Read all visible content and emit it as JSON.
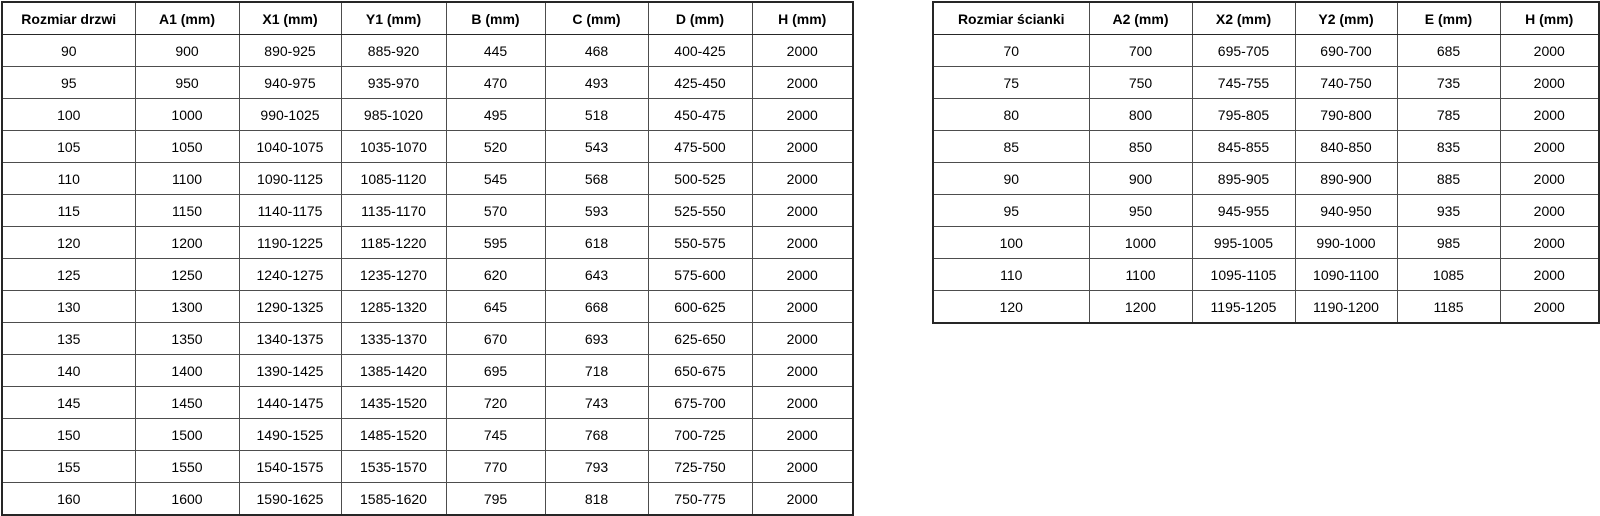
{
  "colors": {
    "background": "#ffffff",
    "text": "#000000",
    "grid_border": "#4d4d4d",
    "outer_border": "#262626"
  },
  "left_table": {
    "title_column": "Rozmiar drzwi",
    "headers": [
      "Rozmiar drzwi",
      "A1 (mm)",
      "X1 (mm)",
      "Y1 (mm)",
      "B (mm)",
      "C (mm)",
      "D (mm)",
      "H (mm)"
    ],
    "rows": [
      [
        "90",
        "900",
        "890-925",
        "885-920",
        "445",
        "468",
        "400-425",
        "2000"
      ],
      [
        "95",
        "950",
        "940-975",
        "935-970",
        "470",
        "493",
        "425-450",
        "2000"
      ],
      [
        "100",
        "1000",
        "990-1025",
        "985-1020",
        "495",
        "518",
        "450-475",
        "2000"
      ],
      [
        "105",
        "1050",
        "1040-1075",
        "1035-1070",
        "520",
        "543",
        "475-500",
        "2000"
      ],
      [
        "110",
        "1100",
        "1090-1125",
        "1085-1120",
        "545",
        "568",
        "500-525",
        "2000"
      ],
      [
        "115",
        "1150",
        "1140-1175",
        "1135-1170",
        "570",
        "593",
        "525-550",
        "2000"
      ],
      [
        "120",
        "1200",
        "1190-1225",
        "1185-1220",
        "595",
        "618",
        "550-575",
        "2000"
      ],
      [
        "125",
        "1250",
        "1240-1275",
        "1235-1270",
        "620",
        "643",
        "575-600",
        "2000"
      ],
      [
        "130",
        "1300",
        "1290-1325",
        "1285-1320",
        "645",
        "668",
        "600-625",
        "2000"
      ],
      [
        "135",
        "1350",
        "1340-1375",
        "1335-1370",
        "670",
        "693",
        "625-650",
        "2000"
      ],
      [
        "140",
        "1400",
        "1390-1425",
        "1385-1420",
        "695",
        "718",
        "650-675",
        "2000"
      ],
      [
        "145",
        "1450",
        "1440-1475",
        "1435-1520",
        "720",
        "743",
        "675-700",
        "2000"
      ],
      [
        "150",
        "1500",
        "1490-1525",
        "1485-1520",
        "745",
        "768",
        "700-725",
        "2000"
      ],
      [
        "155",
        "1550",
        "1540-1575",
        "1535-1570",
        "770",
        "793",
        "725-750",
        "2000"
      ],
      [
        "160",
        "1600",
        "1590-1625",
        "1585-1620",
        "795",
        "818",
        "750-775",
        "2000"
      ]
    ]
  },
  "right_table": {
    "title_column": "Rozmiar ścianki",
    "headers": [
      "Rozmiar ścianki",
      "A2 (mm)",
      "X2 (mm)",
      "Y2 (mm)",
      "E (mm)",
      "H (mm)"
    ],
    "rows": [
      [
        "70",
        "700",
        "695-705",
        "690-700",
        "685",
        "2000"
      ],
      [
        "75",
        "750",
        "745-755",
        "740-750",
        "735",
        "2000"
      ],
      [
        "80",
        "800",
        "795-805",
        "790-800",
        "785",
        "2000"
      ],
      [
        "85",
        "850",
        "845-855",
        "840-850",
        "835",
        "2000"
      ],
      [
        "90",
        "900",
        "895-905",
        "890-900",
        "885",
        "2000"
      ],
      [
        "95",
        "950",
        "945-955",
        "940-950",
        "935",
        "2000"
      ],
      [
        "100",
        "1000",
        "995-1005",
        "990-1000",
        "985",
        "2000"
      ],
      [
        "110",
        "1100",
        "1095-1105",
        "1090-1100",
        "1085",
        "2000"
      ],
      [
        "120",
        "1200",
        "1195-1205",
        "1190-1200",
        "1185",
        "2000"
      ]
    ]
  }
}
